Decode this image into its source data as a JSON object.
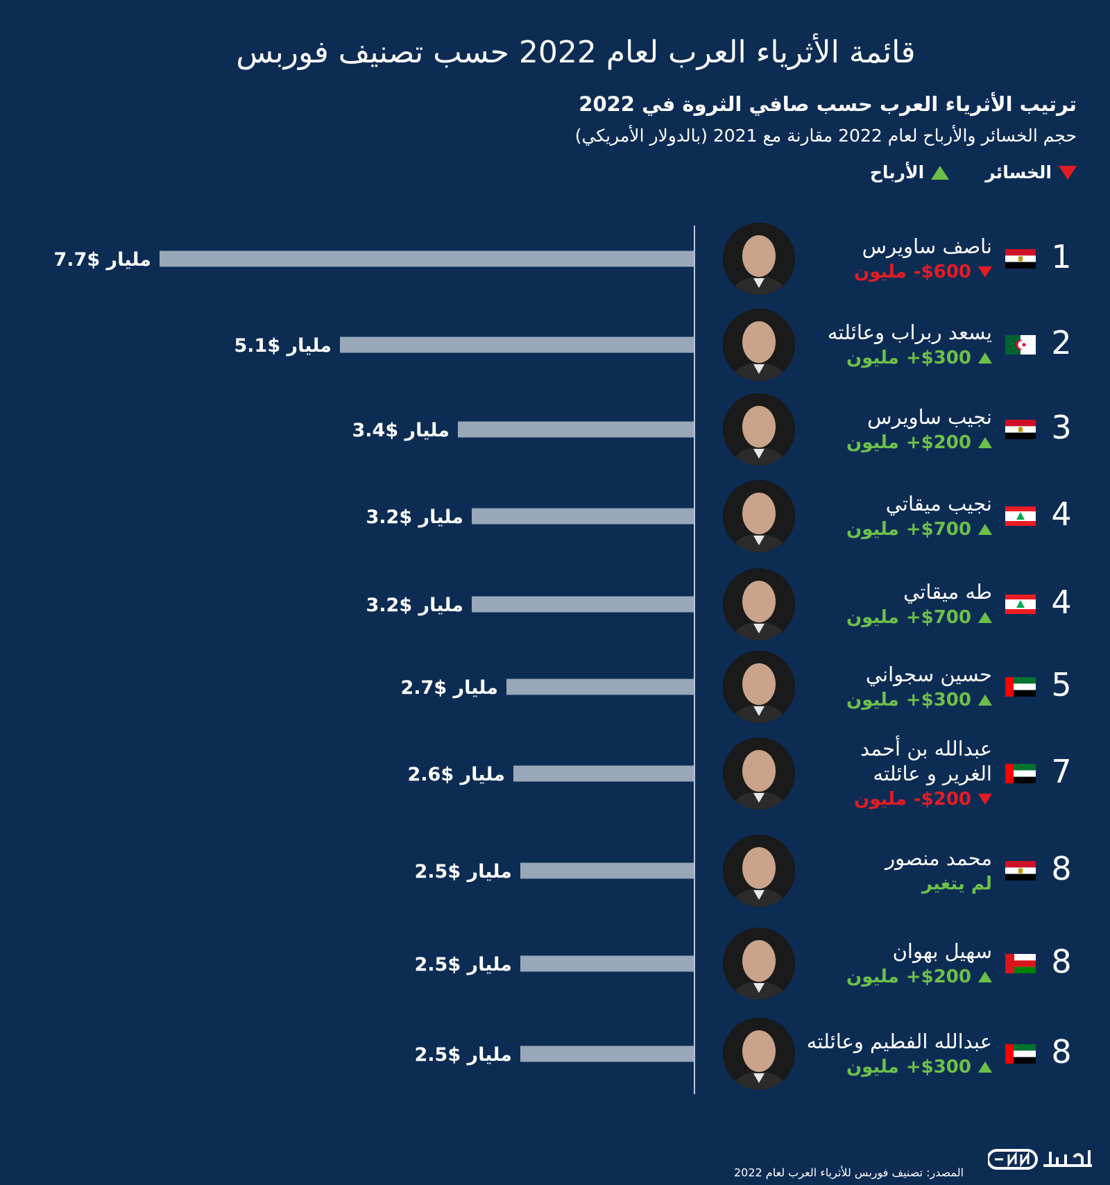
{
  "header": {
    "title": "قائمة الأثرياء العرب لعام 2022 حسب تصنيف فوربس",
    "subtitle": "ترتيب الأثرياء العرب حسب صافي الثروة في 2022",
    "subtitle2": "حجم الخسائر والأرباح لعام 2022 مقارنة مع 2021 (بالدولار الأمريكي)"
  },
  "legend": {
    "losses": "الخسائر",
    "gains": "الأرباح"
  },
  "colors": {
    "background": "#0d2c54",
    "bar": "#98a8b8",
    "loss": "#e51b24",
    "gain": "#6cc04a"
  },
  "chart_data": {
    "type": "bar",
    "orientation": "horizontal",
    "unit": "مليار",
    "values": [
      7.7,
      5.1,
      3.4,
      3.2,
      3.2,
      2.7,
      2.6,
      2.5,
      2.5,
      2.5
    ],
    "value_labels": [
      "$7.7",
      "$5.1",
      "$3.4",
      "$3.2",
      "$3.2",
      "$2.7",
      "$2.6",
      "$2.5",
      "$2.5",
      "$2.5"
    ],
    "rows": [
      {
        "rank": "1",
        "name": "ناصف ساويرس",
        "flag": "egypt",
        "change_type": "loss",
        "change": "-$600",
        "change_unit": "مليون",
        "value": 7.7
      },
      {
        "rank": "2",
        "name": "يسعد ربراب وعائلته",
        "flag": "algeria",
        "change_type": "gain",
        "change": "+$300",
        "change_unit": "مليون",
        "value": 5.1
      },
      {
        "rank": "3",
        "name": "نجيب ساويرس",
        "flag": "egypt",
        "change_type": "gain",
        "change": "+$200",
        "change_unit": "مليون",
        "value": 3.4
      },
      {
        "rank": "4",
        "name": "نجيب ميقاتي",
        "flag": "lebanon",
        "change_type": "gain",
        "change": "+$700",
        "change_unit": "مليون",
        "value": 3.2
      },
      {
        "rank": "4",
        "name": "طه ميقاتي",
        "flag": "lebanon",
        "change_type": "gain",
        "change": "+$700",
        "change_unit": "مليون",
        "value": 3.2
      },
      {
        "rank": "5",
        "name": "حسين سجواني",
        "flag": "uae",
        "change_type": "gain",
        "change": "+$300",
        "change_unit": "مليون",
        "value": 2.7
      },
      {
        "rank": "7",
        "name": "عبدالله بن أحمد الغرير و عائلته",
        "flag": "uae",
        "change_type": "loss",
        "change": "-$200",
        "change_unit": "مليون",
        "value": 2.6
      },
      {
        "rank": "8",
        "name": "محمد منصور",
        "flag": "egypt",
        "change_type": "nochange",
        "change": "لم يتغير",
        "change_unit": "",
        "value": 2.5
      },
      {
        "rank": "8",
        "name": "سهيل بهوان",
        "flag": "oman",
        "change_type": "gain",
        "change": "+$200",
        "change_unit": "مليون",
        "value": 2.5
      },
      {
        "rank": "8",
        "name": "عبدالله الفطيم وعائلته",
        "flag": "uae",
        "change_type": "gain",
        "change": "+$300",
        "change_unit": "مليون",
        "value": 2.5
      }
    ]
  },
  "footer": {
    "source": "المصدر: تصنيف فوربس للأثرياء العرب لعام 2022",
    "logo": "CNN بالعربية"
  }
}
